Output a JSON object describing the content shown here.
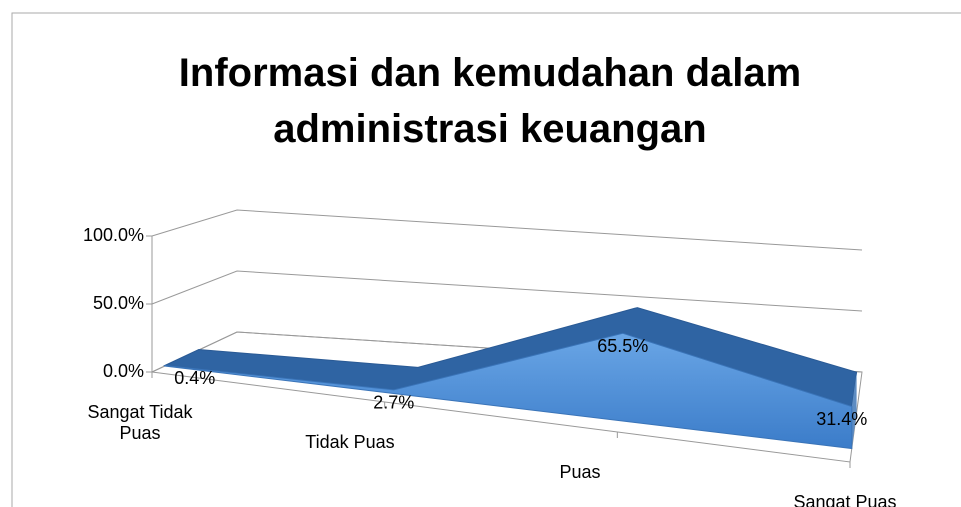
{
  "chart_data": {
    "type": "area3d",
    "title": "Informasi dan kemudahan dalam administrasi keuangan",
    "categories": [
      "Sangat Tidak Puas",
      "Tidak Puas",
      "Puas",
      "Sangat Puas"
    ],
    "values": [
      0.4,
      2.7,
      65.5,
      31.4
    ],
    "value_labels": [
      "0.4%",
      "2.7%",
      "65.5%",
      "31.4%"
    ],
    "color": "#4a8ad6",
    "ylim": [
      0,
      100
    ],
    "yticks": [
      {
        "value": 0,
        "label": "0.0%"
      },
      {
        "value": 50,
        "label": "50.0%"
      },
      {
        "value": 100,
        "label": "100.0%"
      }
    ],
    "grid": true
  }
}
